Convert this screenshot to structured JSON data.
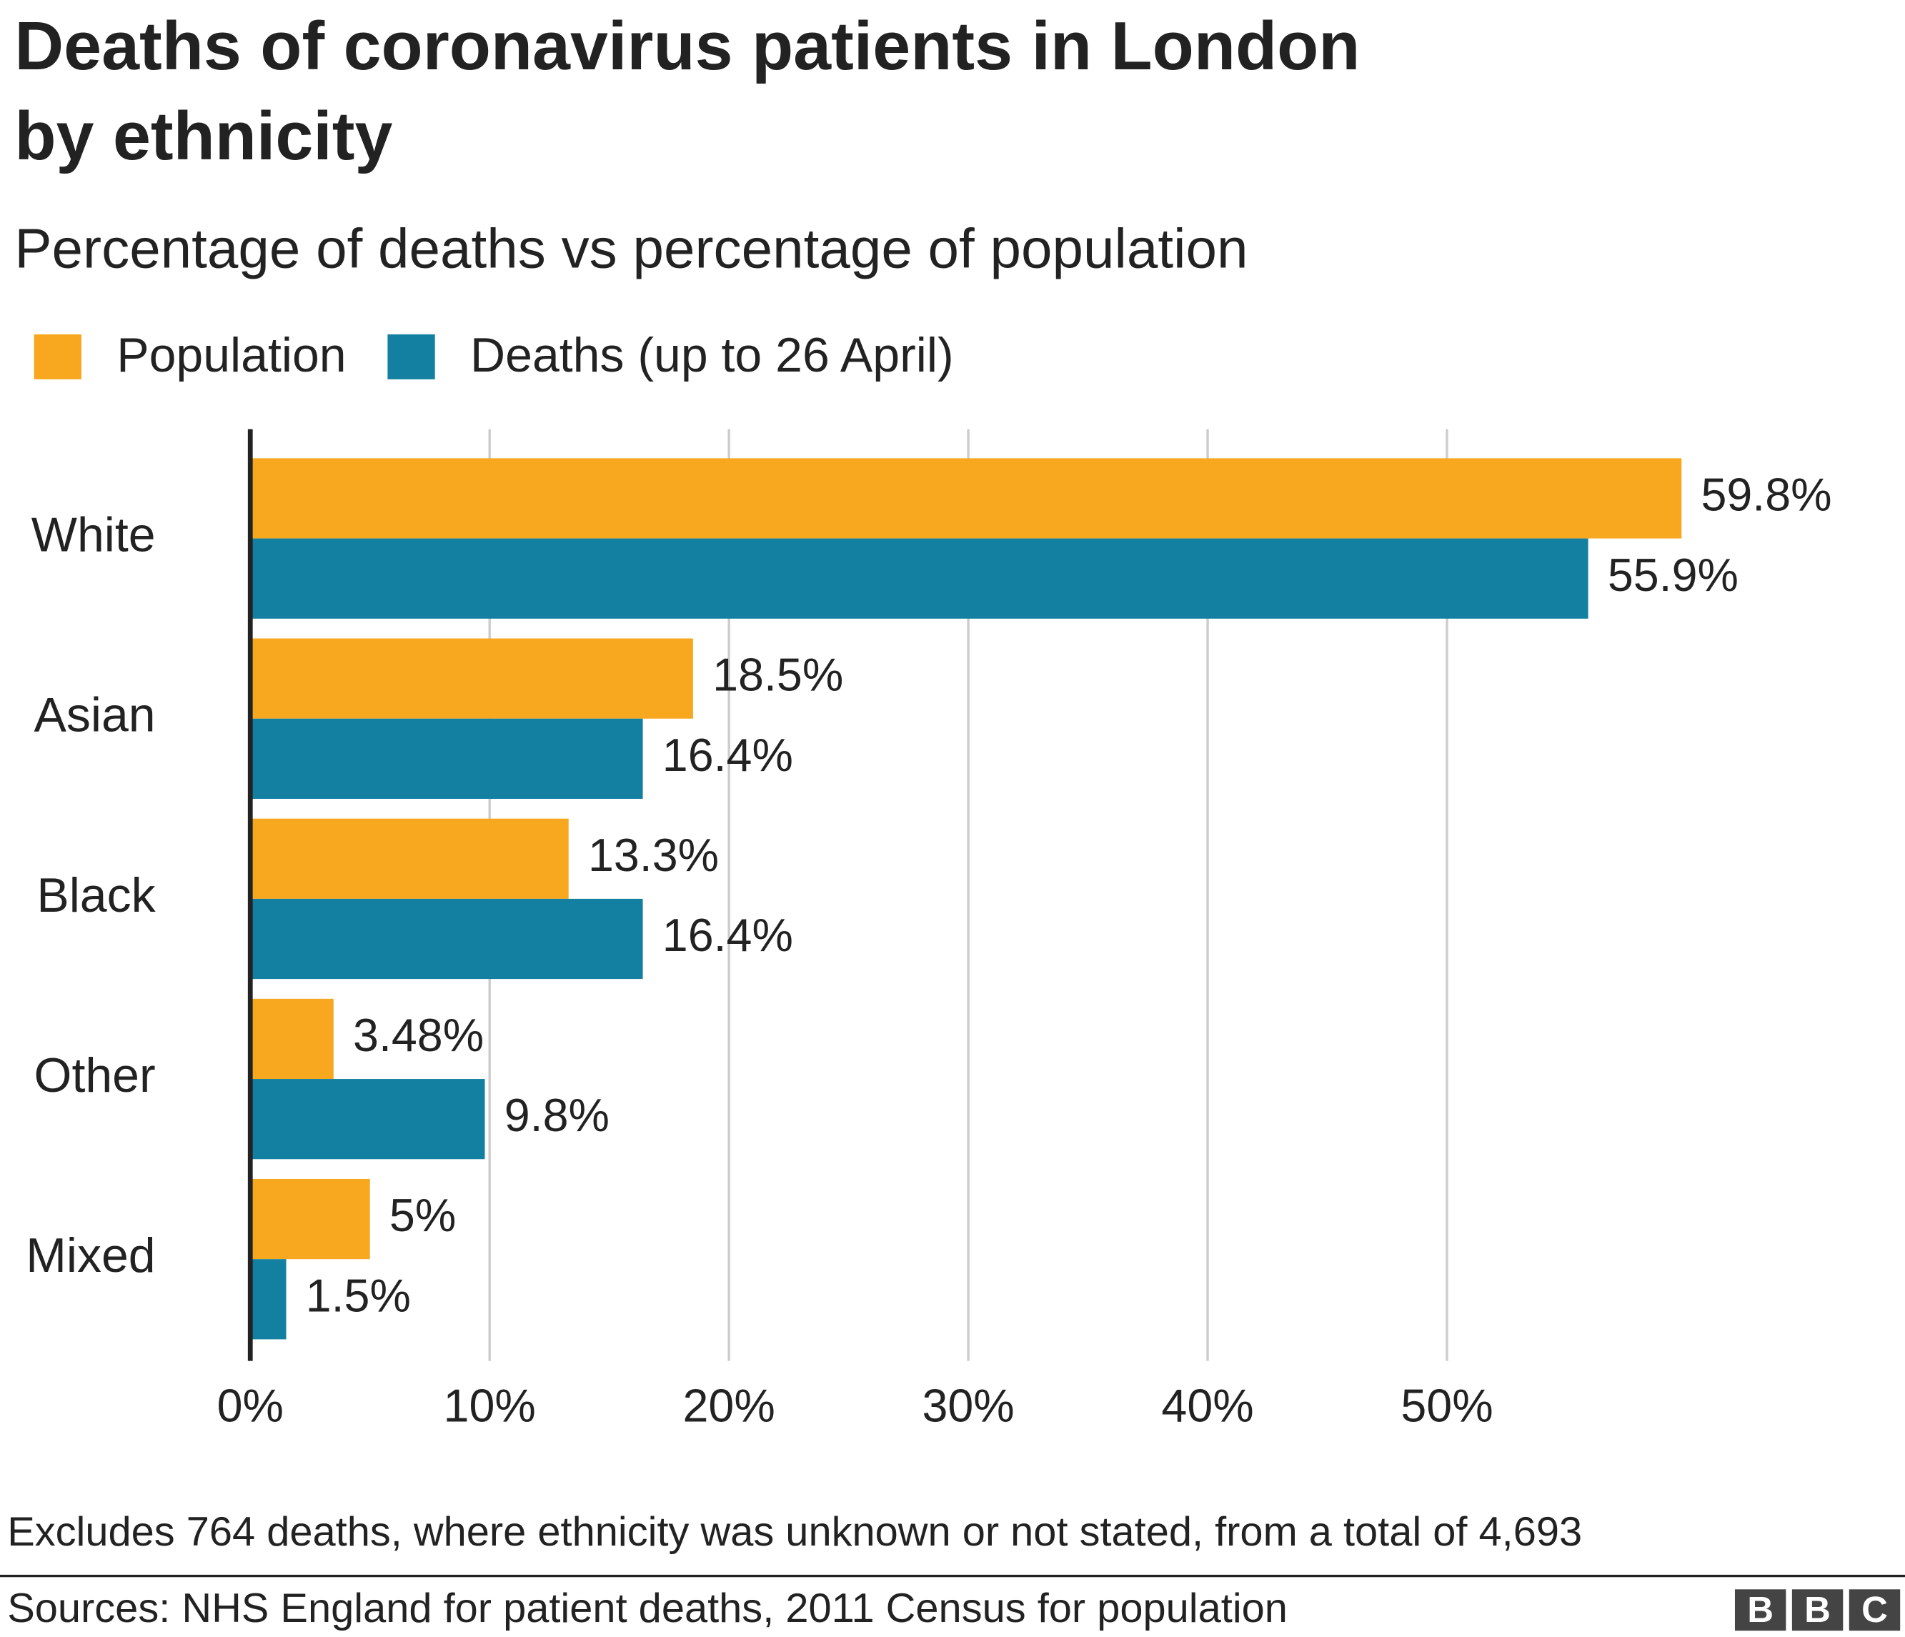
{
  "chart_data": {
    "type": "bar",
    "orientation": "horizontal",
    "title": "Deaths of coronavirus patients in London by ethnicity",
    "title_lines": [
      "Deaths of coronavirus patients in London",
      "by ethnicity"
    ],
    "subtitle": "Percentage of deaths vs percentage of population",
    "categories": [
      "White",
      "Asian",
      "Black",
      "Other",
      "Mixed"
    ],
    "series": [
      {
        "name": "Population",
        "color": "#f8a81e",
        "values": [
          59.8,
          18.5,
          13.3,
          3.48,
          5
        ],
        "value_labels": [
          "59.8%",
          "18.5%",
          "13.3%",
          "3.48%",
          "5%"
        ]
      },
      {
        "name": "Deaths (up to 26 April)",
        "color": "#1380a1",
        "values": [
          55.9,
          16.4,
          16.4,
          9.8,
          1.5
        ],
        "value_labels": [
          "55.9%",
          "16.4%",
          "16.4%",
          "9.8%",
          "1.5%"
        ]
      }
    ],
    "xlim": [
      0,
      60
    ],
    "xticks": [
      {
        "value": 0,
        "label": "0%"
      },
      {
        "value": 10,
        "label": "10%"
      },
      {
        "value": 20,
        "label": "20%"
      },
      {
        "value": 30,
        "label": "30%"
      },
      {
        "value": 40,
        "label": "40%"
      },
      {
        "value": 50,
        "label": "50%"
      }
    ],
    "grid": true,
    "legend": "top-left",
    "note": "Excludes 764 deaths, where ethnicity was unknown or not stated, from a total of 4,693",
    "source": "Sources: NHS England for patient deaths, 2011 Census for population",
    "logo": [
      "B",
      "B",
      "C"
    ]
  }
}
